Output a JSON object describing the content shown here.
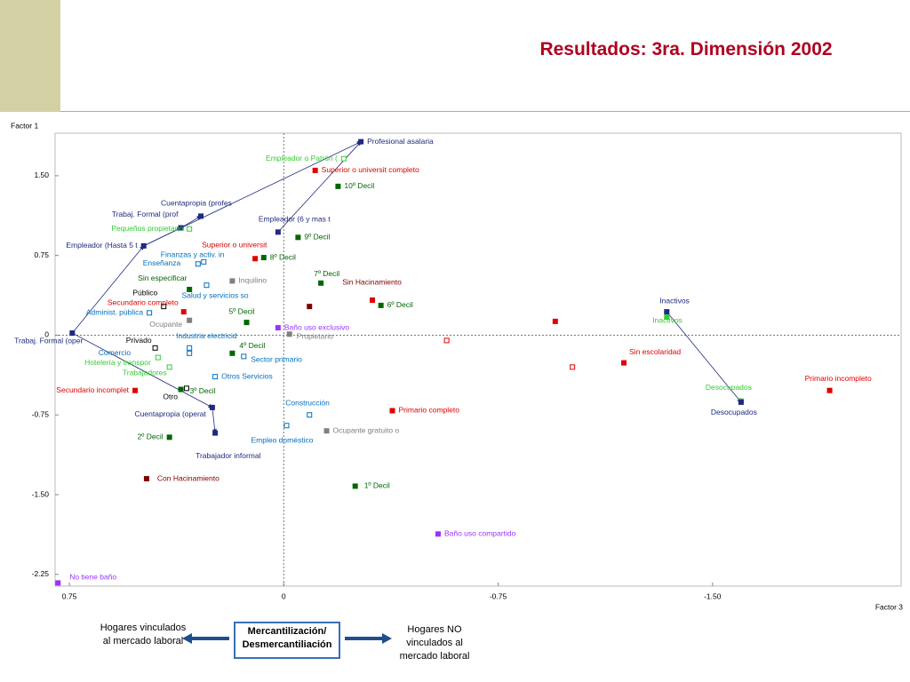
{
  "chart_data": {
    "type": "scatter",
    "title": "Resultados: 3ra. Dimensión 2002",
    "ylabel": "Factor 1",
    "xlabel": "Factor 3",
    "xlim": [
      0.8,
      -2.16
    ],
    "ylim": [
      -2.36,
      1.9
    ],
    "xticks": [
      0.75,
      0,
      -0.75,
      {
        "value": -1.5,
        "label": "-1.50"
      }
    ],
    "yticks": [
      {
        "value": 1.5,
        "label": "1.50"
      },
      0.75,
      0,
      -0.75,
      {
        "value": -1.5,
        "label": "-1.50"
      },
      -2.25
    ],
    "x": [
      -0.27,
      -0.21,
      -0.11,
      -0.19,
      0.29,
      0.36,
      0.33,
      0.02,
      -0.05,
      0.49,
      0.1,
      0.07,
      0.3,
      0.28,
      0.18,
      0.33,
      0.27,
      -0.13,
      -0.09,
      0.42,
      0.35,
      0.47,
      -0.34,
      -0.31,
      0.33,
      0.13,
      0.02,
      -0.02,
      0.74,
      0.45,
      0.33,
      0.33,
      0.44,
      0.18,
      0.14,
      0.4,
      0.24,
      0.52,
      0.36,
      0.34,
      0.25,
      0.24,
      0.4,
      -0.09,
      -0.01,
      -0.38,
      -0.15,
      0.48,
      -0.25,
      -0.54,
      0.79,
      -1.34,
      -1.34,
      -0.95,
      -0.57,
      -1.01,
      -1.19,
      -1.91,
      -1.6,
      -1.6
    ],
    "values": [
      1.82,
      1.66,
      1.55,
      1.4,
      1.12,
      1.01,
      1.0,
      0.97,
      0.92,
      0.84,
      0.72,
      0.73,
      0.67,
      0.69,
      0.51,
      0.43,
      0.47,
      0.49,
      0.27,
      0.27,
      0.22,
      0.21,
      0.28,
      0.33,
      0.14,
      0.12,
      0.07,
      0.01,
      0.02,
      -0.12,
      -0.12,
      -0.17,
      -0.21,
      -0.17,
      -0.2,
      -0.3,
      -0.39,
      -0.52,
      -0.51,
      -0.5,
      -0.68,
      -0.92,
      -0.96,
      -0.75,
      -0.85,
      -0.71,
      -0.9,
      -1.35,
      -1.42,
      -1.87,
      -2.33,
      0.22,
      0.17,
      0.13,
      -0.05,
      -0.3,
      -0.26,
      -0.52,
      -0.62,
      -0.63
    ],
    "point_labels": [
      "Profesional asalaria",
      "Empleador o Patrón (",
      "Superior o universit completo",
      "10º Decil",
      "Cuentapropia (profes",
      "Trabaj. Formal (prof",
      "Pequeños propietario",
      "Empleador (6 y mas t",
      "9º Decil",
      "Empleador (Hasta 5 t",
      "Superior o universit",
      "8º Decil",
      "Finanzas y activ. in",
      "Enseñanza",
      "Inquilino",
      "Sin especificar",
      "Salud y servicios so",
      "7º Decil",
      "Sin Hacinamiento",
      "Público",
      "Secundario completo",
      "Administ. pública",
      "6º Decil",
      null,
      "Ocupante",
      "5º Decil",
      "Baño uso exclusivo",
      "Propietario",
      "Trabaj. Formal (oper",
      "Privado",
      "Industria electricid",
      "Comercio",
      "Hotelería y transpor",
      "4º Decil",
      "Sector primario",
      "Trabajadores",
      "Otros Servicios",
      "Secundario incomplet",
      "3º Decil",
      "Otro",
      "Cuentapropia (operat",
      "Trabajador informal",
      "2º Decil",
      "Construcción",
      "Empleo doméstico",
      "Primario completo",
      "Ocupante gratuito o",
      "Con Hacinamiento",
      "1º Decil",
      "Baño uso compartido",
      "No tiene baño",
      "Inactivos",
      "Inactivos",
      null,
      null,
      null,
      "Sin escolaridad",
      "Primario incompleto",
      "Desocupados",
      "Desocupados"
    ],
    "colors": [
      "#1f2a80",
      "#33cc33",
      "#e00000",
      "#006600",
      "#1f2a80",
      "#1f2a80",
      "#33cc33",
      "#1f2a80",
      "#006600",
      "#1f2a80",
      "#e00000",
      "#006600",
      "#0070c0",
      "#0070c0",
      "#808080",
      "#006600",
      "#0070c0",
      "#006600",
      "#800000",
      "#000000",
      "#e00000",
      "#0070c0",
      "#006600",
      "#e00000",
      "#808080",
      "#006600",
      "#9933ff",
      "#808080",
      "#1f2a80",
      "#000000",
      "#0070c0",
      "#0070c0",
      "#33cc33",
      "#006600",
      "#0070c0",
      "#33cc33",
      "#0070c0",
      "#e00000",
      "#006600",
      "#000000",
      "#1f2a80",
      "#1f2a80",
      "#006600",
      "#0070c0",
      "#0070c0",
      "#e00000",
      "#808080",
      "#800000",
      "#006600",
      "#9933ff",
      "#9933ff",
      "#1f2a80",
      "#33cc33",
      "#e00000",
      "#e00000",
      "#e00000",
      "#e00000",
      "#e00000",
      "#33cc33",
      "#1f2a80"
    ],
    "hollow": [
      false,
      true,
      false,
      false,
      false,
      false,
      true,
      false,
      false,
      false,
      false,
      false,
      true,
      true,
      false,
      false,
      true,
      false,
      false,
      true,
      false,
      true,
      false,
      false,
      false,
      false,
      false,
      false,
      false,
      true,
      true,
      true,
      true,
      false,
      true,
      true,
      true,
      false,
      false,
      true,
      false,
      false,
      false,
      true,
      true,
      false,
      false,
      false,
      false,
      false,
      false,
      false,
      false,
      false,
      true,
      true,
      false,
      false,
      false,
      false
    ],
    "annotations": {
      "left": "Hogares vinculados al mercado laboral",
      "center": "Mercantilización/ Desmercantiliación",
      "right": "Hogares NO vinculados al mercado laboral"
    }
  }
}
